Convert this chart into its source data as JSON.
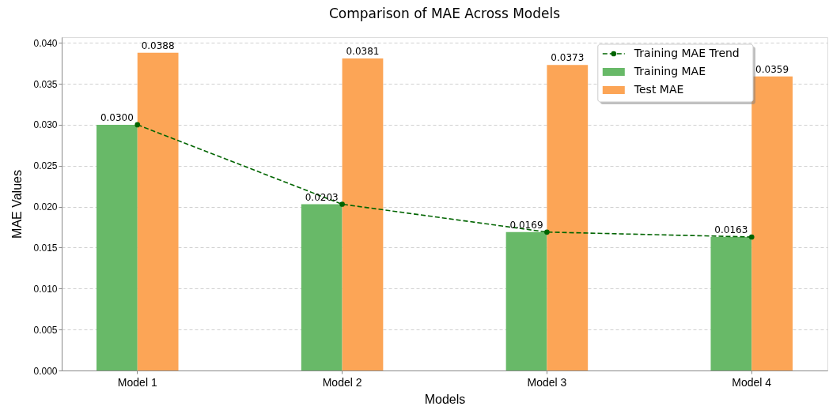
{
  "chart_data": {
    "type": "bar",
    "title": "Comparison of MAE Across Models",
    "xlabel": "Models",
    "ylabel": "MAE Values",
    "categories": [
      "Model 1",
      "Model 2",
      "Model 3",
      "Model 4"
    ],
    "series": [
      {
        "name": "Training MAE Trend",
        "type": "line",
        "color": "#006400",
        "marker": "circle",
        "line_style": "dashed",
        "values": [
          0.03,
          0.0203,
          0.0169,
          0.0163
        ]
      },
      {
        "name": "Training MAE",
        "color": "#68b968",
        "values": [
          0.03,
          0.0203,
          0.0169,
          0.0163
        ],
        "value_labels": [
          "0.0300",
          "0.0203",
          "0.0169",
          "0.0163"
        ]
      },
      {
        "name": "Test MAE",
        "color": "#fca556",
        "values": [
          0.0388,
          0.0381,
          0.0373,
          0.0359
        ],
        "value_labels": [
          "0.0388",
          "0.0381",
          "0.0373",
          "0.0359"
        ]
      }
    ],
    "ylim": [
      0,
      0.0407
    ],
    "yticks": [
      {
        "value": 0,
        "label": "0.000"
      },
      {
        "value": 0.005,
        "label": "0.005"
      },
      {
        "value": 0.01,
        "label": "0.010"
      },
      {
        "value": 0.015,
        "label": "0.015"
      },
      {
        "value": 0.02,
        "label": "0.020"
      },
      {
        "value": 0.025,
        "label": "0.025"
      },
      {
        "value": 0.03,
        "label": "0.030"
      },
      {
        "value": 0.035,
        "label": "0.035"
      },
      {
        "value": 0.04,
        "label": "0.040"
      }
    ],
    "grid": "y",
    "legend": "top right"
  }
}
